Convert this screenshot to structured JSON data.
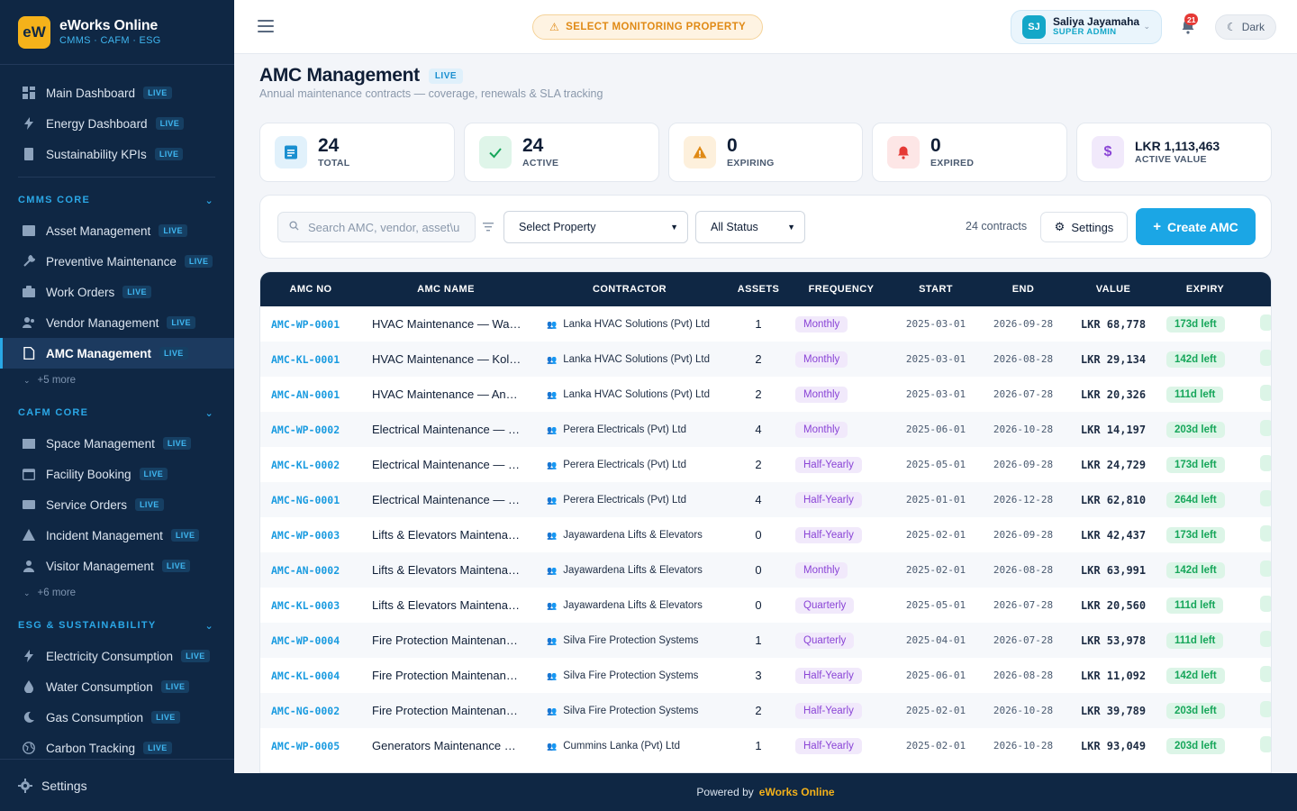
{
  "brand": {
    "logo": "eW",
    "name": "eWorks Online",
    "sub": "CMMS · CAFM · ESG"
  },
  "nav": {
    "top": [
      {
        "label": "Main Dashboard",
        "badge": "LIVE",
        "icon": "grid-icon"
      },
      {
        "label": "Energy Dashboard",
        "badge": "LIVE",
        "icon": "bolt-icon"
      },
      {
        "label": "Sustainability KPIs",
        "badge": "LIVE",
        "icon": "document-icon"
      }
    ],
    "cmms": {
      "title": "CMMS CORE",
      "items": [
        {
          "label": "Asset Management",
          "badge": "LIVE"
        },
        {
          "label": "Preventive Maintenance",
          "badge": "LIVE"
        },
        {
          "label": "Work Orders",
          "badge": "LIVE"
        },
        {
          "label": "Vendor Management",
          "badge": "LIVE"
        },
        {
          "label": "AMC Management",
          "badge": "LIVE"
        }
      ],
      "more": "+5 more"
    },
    "cafm": {
      "title": "CAFM CORE",
      "items": [
        {
          "label": "Space Management",
          "badge": "LIVE"
        },
        {
          "label": "Facility Booking",
          "badge": "LIVE"
        },
        {
          "label": "Service Orders",
          "badge": "LIVE"
        },
        {
          "label": "Incident Management",
          "badge": "LIVE"
        },
        {
          "label": "Visitor Management",
          "badge": "LIVE"
        }
      ],
      "more": "+6 more"
    },
    "esg": {
      "title": "ESG & SUSTAINABILITY",
      "items": [
        {
          "label": "Electricity Consumption",
          "badge": "LIVE"
        },
        {
          "label": "Water Consumption",
          "badge": "LIVE"
        },
        {
          "label": "Gas Consumption",
          "badge": "LIVE"
        },
        {
          "label": "Carbon Tracking",
          "badge": "LIVE"
        }
      ]
    },
    "footer_settings": "Settings"
  },
  "header": {
    "monitor_label": "SELECT MONITORING PROPERTY",
    "user": {
      "initials": "SJ",
      "name": "Saliya Jayamaha",
      "role": "SUPER ADMIN"
    },
    "notifications": "21",
    "theme_label": "Dark"
  },
  "page": {
    "title": "AMC Management",
    "badge": "LIVE",
    "subtitle": "Annual maintenance contracts — coverage, renewals & SLA tracking"
  },
  "stats": [
    {
      "value": "24",
      "label": "TOTAL",
      "icon": "list-icon",
      "color": "#1a8fd0",
      "bg": "#e1f1fb"
    },
    {
      "value": "24",
      "label": "ACTIVE",
      "icon": "check-icon",
      "color": "#16a65a",
      "bg": "#dff5e9"
    },
    {
      "value": "0",
      "label": "EXPIRING",
      "icon": "warning-icon",
      "color": "#e08a16",
      "bg": "#fdf0dc"
    },
    {
      "value": "0",
      "label": "EXPIRED",
      "icon": "bell-icon",
      "color": "#e53935",
      "bg": "#fde6e6"
    },
    {
      "value": "LKR 1,113,463",
      "label": "ACTIVE VALUE",
      "icon": "dollar-icon",
      "color": "#8a44d6",
      "bg": "#f1e9fb"
    }
  ],
  "toolbar": {
    "search_placeholder": "Search AMC, vendor, asset\\u",
    "property_select": "Select Property",
    "status_select": "All Status",
    "contracts_count": "24 contracts",
    "settings_label": "Settings",
    "create_label": "Create AMC"
  },
  "table": {
    "columns": [
      "AMC NO",
      "AMC NAME",
      "CONTRACTOR",
      "ASSETS",
      "FREQUENCY",
      "START",
      "END",
      "VALUE",
      "EXPIRY"
    ],
    "rows": [
      {
        "no": "AMC-WP-0001",
        "name": "HVAC Maintenance — War…",
        "contractor": "Lanka HVAC Solutions (Pvt) Ltd",
        "assets": "1",
        "frequency": "Monthly",
        "start": "2025-03-01",
        "end": "2026-09-28",
        "value": "LKR 68,778",
        "expiry": "173d left"
      },
      {
        "no": "AMC-KL-0001",
        "name": "HVAC Maintenance — Kollu…",
        "contractor": "Lanka HVAC Solutions (Pvt) Ltd",
        "assets": "2",
        "frequency": "Monthly",
        "start": "2025-03-01",
        "end": "2026-08-28",
        "value": "LKR 29,134",
        "expiry": "142d left"
      },
      {
        "no": "AMC-AN-0001",
        "name": "HVAC Maintenance — Anur…",
        "contractor": "Lanka HVAC Solutions (Pvt) Ltd",
        "assets": "2",
        "frequency": "Monthly",
        "start": "2025-03-01",
        "end": "2026-07-28",
        "value": "LKR 20,326",
        "expiry": "111d left"
      },
      {
        "no": "AMC-WP-0002",
        "name": "Electrical Maintenance — …",
        "contractor": "Perera Electricals (Pvt) Ltd",
        "assets": "4",
        "frequency": "Monthly",
        "start": "2025-06-01",
        "end": "2026-10-28",
        "value": "LKR 14,197",
        "expiry": "203d left"
      },
      {
        "no": "AMC-KL-0002",
        "name": "Electrical Maintenance — K…",
        "contractor": "Perera Electricals (Pvt) Ltd",
        "assets": "2",
        "frequency": "Half-Yearly",
        "start": "2025-05-01",
        "end": "2026-09-28",
        "value": "LKR 24,729",
        "expiry": "173d left"
      },
      {
        "no": "AMC-NG-0001",
        "name": "Electrical Maintenance — N…",
        "contractor": "Perera Electricals (Pvt) Ltd",
        "assets": "4",
        "frequency": "Half-Yearly",
        "start": "2025-01-01",
        "end": "2026-12-28",
        "value": "LKR 62,810",
        "expiry": "264d left"
      },
      {
        "no": "AMC-WP-0003",
        "name": "Lifts & Elevators Maintenan…",
        "contractor": "Jayawardena Lifts & Elevators",
        "assets": "0",
        "frequency": "Half-Yearly",
        "start": "2025-02-01",
        "end": "2026-09-28",
        "value": "LKR 42,437",
        "expiry": "173d left"
      },
      {
        "no": "AMC-AN-0002",
        "name": "Lifts & Elevators Maintenan…",
        "contractor": "Jayawardena Lifts & Elevators",
        "assets": "0",
        "frequency": "Monthly",
        "start": "2025-02-01",
        "end": "2026-08-28",
        "value": "LKR 63,991",
        "expiry": "142d left"
      },
      {
        "no": "AMC-KL-0003",
        "name": "Lifts & Elevators Maintenan…",
        "contractor": "Jayawardena Lifts & Elevators",
        "assets": "0",
        "frequency": "Quarterly",
        "start": "2025-05-01",
        "end": "2026-07-28",
        "value": "LKR 20,560",
        "expiry": "111d left"
      },
      {
        "no": "AMC-WP-0004",
        "name": "Fire Protection Maintenanc…",
        "contractor": "Silva Fire Protection Systems",
        "assets": "1",
        "frequency": "Quarterly",
        "start": "2025-04-01",
        "end": "2026-07-28",
        "value": "LKR 53,978",
        "expiry": "111d left"
      },
      {
        "no": "AMC-KL-0004",
        "name": "Fire Protection Maintenanc…",
        "contractor": "Silva Fire Protection Systems",
        "assets": "3",
        "frequency": "Half-Yearly",
        "start": "2025-06-01",
        "end": "2026-08-28",
        "value": "LKR 11,092",
        "expiry": "142d left"
      },
      {
        "no": "AMC-NG-0002",
        "name": "Fire Protection Maintenanc…",
        "contractor": "Silva Fire Protection Systems",
        "assets": "2",
        "frequency": "Half-Yearly",
        "start": "2025-02-01",
        "end": "2026-10-28",
        "value": "LKR 39,789",
        "expiry": "203d left"
      },
      {
        "no": "AMC-WP-0005",
        "name": "Generators Maintenance —…",
        "contractor": "Cummins Lanka (Pvt) Ltd",
        "assets": "1",
        "frequency": "Half-Yearly",
        "start": "2025-02-01",
        "end": "2026-10-28",
        "value": "LKR 93,049",
        "expiry": "203d left"
      }
    ]
  },
  "footer": {
    "prefix": "Powered by",
    "brand": "eWorks Online"
  }
}
